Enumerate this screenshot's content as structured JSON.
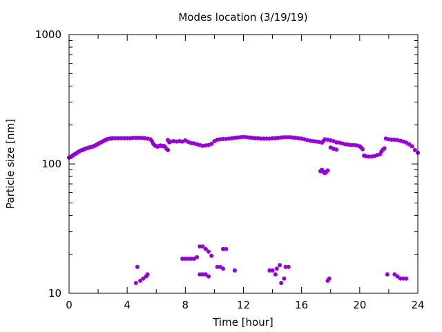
{
  "chart_data": {
    "type": "scatter",
    "title": "Modes location (3/19/19)",
    "xlabel": "Time [hour]",
    "ylabel": "Particle size [nm]",
    "xlim": [
      0,
      24
    ],
    "ylim": [
      10,
      1000
    ],
    "yscale": "log",
    "grid": false,
    "legend": "none",
    "marker_color": "#9400d3",
    "xticks": [
      0,
      4,
      8,
      12,
      16,
      20,
      24
    ],
    "xtick_labels": [
      "0",
      "4",
      "8",
      "12",
      "16",
      "20",
      "24"
    ],
    "yticks": [
      10,
      100,
      1000
    ],
    "ytick_labels": [
      "10",
      "100",
      "1000"
    ],
    "series": [
      {
        "values": [
          {
            "x": 0.0,
            "y": 112
          },
          {
            "x": 0.1,
            "y": 113
          },
          {
            "x": 0.2,
            "y": 115
          },
          {
            "x": 0.3,
            "y": 117
          },
          {
            "x": 0.4,
            "y": 119
          },
          {
            "x": 0.5,
            "y": 121
          },
          {
            "x": 0.6,
            "y": 123
          },
          {
            "x": 0.7,
            "y": 125
          },
          {
            "x": 0.8,
            "y": 127
          },
          {
            "x": 0.9,
            "y": 128
          },
          {
            "x": 1.0,
            "y": 129
          },
          {
            "x": 1.1,
            "y": 131
          },
          {
            "x": 1.2,
            "y": 132
          },
          {
            "x": 1.3,
            "y": 133
          },
          {
            "x": 1.4,
            "y": 134
          },
          {
            "x": 1.5,
            "y": 135
          },
          {
            "x": 1.6,
            "y": 136
          },
          {
            "x": 1.7,
            "y": 137
          },
          {
            "x": 1.8,
            "y": 139
          },
          {
            "x": 1.9,
            "y": 141
          },
          {
            "x": 2.0,
            "y": 143
          },
          {
            "x": 2.1,
            "y": 145
          },
          {
            "x": 2.2,
            "y": 147
          },
          {
            "x": 2.3,
            "y": 149
          },
          {
            "x": 2.4,
            "y": 151
          },
          {
            "x": 2.5,
            "y": 153
          },
          {
            "x": 2.6,
            "y": 155
          },
          {
            "x": 2.7,
            "y": 156
          },
          {
            "x": 2.8,
            "y": 157
          },
          {
            "x": 2.9,
            "y": 157
          },
          {
            "x": 3.0,
            "y": 158
          },
          {
            "x": 3.2,
            "y": 158
          },
          {
            "x": 3.4,
            "y": 158
          },
          {
            "x": 3.6,
            "y": 158
          },
          {
            "x": 3.8,
            "y": 158
          },
          {
            "x": 4.0,
            "y": 158
          },
          {
            "x": 4.2,
            "y": 158
          },
          {
            "x": 4.4,
            "y": 159
          },
          {
            "x": 4.6,
            "y": 159
          },
          {
            "x": 4.8,
            "y": 159
          },
          {
            "x": 5.0,
            "y": 159
          },
          {
            "x": 5.2,
            "y": 158
          },
          {
            "x": 5.4,
            "y": 157
          },
          {
            "x": 5.6,
            "y": 155
          },
          {
            "x": 5.7,
            "y": 150
          },
          {
            "x": 5.8,
            "y": 143
          },
          {
            "x": 5.9,
            "y": 139
          },
          {
            "x": 6.0,
            "y": 137
          },
          {
            "x": 6.1,
            "y": 136
          },
          {
            "x": 6.2,
            "y": 138
          },
          {
            "x": 6.3,
            "y": 139
          },
          {
            "x": 6.4,
            "y": 137
          },
          {
            "x": 6.5,
            "y": 138
          },
          {
            "x": 6.6,
            "y": 136
          },
          {
            "x": 6.7,
            "y": 131
          },
          {
            "x": 6.8,
            "y": 128
          },
          {
            "x": 6.8,
            "y": 153
          },
          {
            "x": 6.9,
            "y": 147
          },
          {
            "x": 7.0,
            "y": 149
          },
          {
            "x": 7.2,
            "y": 150
          },
          {
            "x": 7.4,
            "y": 149
          },
          {
            "x": 7.6,
            "y": 150
          },
          {
            "x": 7.8,
            "y": 149
          },
          {
            "x": 8.0,
            "y": 152
          },
          {
            "x": 8.2,
            "y": 148
          },
          {
            "x": 8.4,
            "y": 145
          },
          {
            "x": 8.6,
            "y": 144
          },
          {
            "x": 8.8,
            "y": 142
          },
          {
            "x": 9.0,
            "y": 140
          },
          {
            "x": 9.2,
            "y": 138
          },
          {
            "x": 9.4,
            "y": 139
          },
          {
            "x": 9.6,
            "y": 140
          },
          {
            "x": 9.8,
            "y": 143
          },
          {
            "x": 10.0,
            "y": 150
          },
          {
            "x": 10.2,
            "y": 154
          },
          {
            "x": 10.4,
            "y": 155
          },
          {
            "x": 10.6,
            "y": 156
          },
          {
            "x": 10.8,
            "y": 156
          },
          {
            "x": 11.0,
            "y": 157
          },
          {
            "x": 11.2,
            "y": 158
          },
          {
            "x": 11.4,
            "y": 159
          },
          {
            "x": 11.6,
            "y": 160
          },
          {
            "x": 11.8,
            "y": 161
          },
          {
            "x": 12.0,
            "y": 162
          },
          {
            "x": 12.2,
            "y": 161
          },
          {
            "x": 12.4,
            "y": 160
          },
          {
            "x": 12.6,
            "y": 159
          },
          {
            "x": 12.8,
            "y": 158
          },
          {
            "x": 13.0,
            "y": 158
          },
          {
            "x": 13.2,
            "y": 157
          },
          {
            "x": 13.4,
            "y": 157
          },
          {
            "x": 13.6,
            "y": 157
          },
          {
            "x": 13.8,
            "y": 157
          },
          {
            "x": 14.0,
            "y": 158
          },
          {
            "x": 14.2,
            "y": 158
          },
          {
            "x": 14.4,
            "y": 159
          },
          {
            "x": 14.6,
            "y": 160
          },
          {
            "x": 14.8,
            "y": 161
          },
          {
            "x": 15.0,
            "y": 161
          },
          {
            "x": 15.2,
            "y": 161
          },
          {
            "x": 15.4,
            "y": 160
          },
          {
            "x": 15.6,
            "y": 159
          },
          {
            "x": 15.8,
            "y": 158
          },
          {
            "x": 16.0,
            "y": 157
          },
          {
            "x": 16.2,
            "y": 155
          },
          {
            "x": 16.4,
            "y": 153
          },
          {
            "x": 16.6,
            "y": 151
          },
          {
            "x": 16.8,
            "y": 150
          },
          {
            "x": 17.0,
            "y": 149
          },
          {
            "x": 17.2,
            "y": 148
          },
          {
            "x": 17.4,
            "y": 146
          },
          {
            "x": 17.5,
            "y": 150
          },
          {
            "x": 17.6,
            "y": 155
          },
          {
            "x": 17.8,
            "y": 154
          },
          {
            "x": 18.0,
            "y": 152
          },
          {
            "x": 18.2,
            "y": 150
          },
          {
            "x": 18.4,
            "y": 147
          },
          {
            "x": 18.6,
            "y": 146
          },
          {
            "x": 18.8,
            "y": 144
          },
          {
            "x": 19.0,
            "y": 142
          },
          {
            "x": 19.2,
            "y": 141
          },
          {
            "x": 19.4,
            "y": 140
          },
          {
            "x": 19.6,
            "y": 140
          },
          {
            "x": 19.8,
            "y": 139
          },
          {
            "x": 20.0,
            "y": 137
          },
          {
            "x": 20.1,
            "y": 134
          },
          {
            "x": 20.2,
            "y": 130
          },
          {
            "x": 20.3,
            "y": 116
          },
          {
            "x": 20.4,
            "y": 115
          },
          {
            "x": 20.6,
            "y": 114
          },
          {
            "x": 20.8,
            "y": 114
          },
          {
            "x": 21.0,
            "y": 115
          },
          {
            "x": 21.2,
            "y": 117
          },
          {
            "x": 21.4,
            "y": 119
          },
          {
            "x": 21.5,
            "y": 125
          },
          {
            "x": 21.6,
            "y": 129
          },
          {
            "x": 21.7,
            "y": 132
          },
          {
            "x": 21.8,
            "y": 157
          },
          {
            "x": 22.0,
            "y": 155
          },
          {
            "x": 22.2,
            "y": 154
          },
          {
            "x": 22.4,
            "y": 154
          },
          {
            "x": 22.6,
            "y": 153
          },
          {
            "x": 22.8,
            "y": 151
          },
          {
            "x": 23.0,
            "y": 149
          },
          {
            "x": 23.2,
            "y": 146
          },
          {
            "x": 23.4,
            "y": 142
          },
          {
            "x": 23.6,
            "y": 137
          },
          {
            "x": 23.8,
            "y": 128
          },
          {
            "x": 24.0,
            "y": 122
          },
          {
            "x": 17.3,
            "y": 88
          },
          {
            "x": 17.4,
            "y": 90
          },
          {
            "x": 17.5,
            "y": 87
          },
          {
            "x": 17.6,
            "y": 85
          },
          {
            "x": 17.7,
            "y": 87
          },
          {
            "x": 17.8,
            "y": 89
          },
          {
            "x": 18.0,
            "y": 134
          },
          {
            "x": 18.2,
            "y": 131
          },
          {
            "x": 18.4,
            "y": 129
          },
          {
            "x": 4.6,
            "y": 12
          },
          {
            "x": 4.7,
            "y": 16
          },
          {
            "x": 4.9,
            "y": 12.5
          },
          {
            "x": 5.1,
            "y": 13
          },
          {
            "x": 5.3,
            "y": 13.5
          },
          {
            "x": 5.4,
            "y": 14
          },
          {
            "x": 7.8,
            "y": 18.5
          },
          {
            "x": 8.0,
            "y": 18.5
          },
          {
            "x": 8.2,
            "y": 18.5
          },
          {
            "x": 8.4,
            "y": 18.5
          },
          {
            "x": 8.6,
            "y": 18.5
          },
          {
            "x": 8.8,
            "y": 19
          },
          {
            "x": 9.0,
            "y": 23
          },
          {
            "x": 9.2,
            "y": 23
          },
          {
            "x": 9.4,
            "y": 22
          },
          {
            "x": 9.6,
            "y": 21
          },
          {
            "x": 9.8,
            "y": 19.5
          },
          {
            "x": 10.6,
            "y": 22
          },
          {
            "x": 10.8,
            "y": 22
          },
          {
            "x": 9.0,
            "y": 14
          },
          {
            "x": 9.2,
            "y": 14
          },
          {
            "x": 9.4,
            "y": 14
          },
          {
            "x": 9.6,
            "y": 13.5
          },
          {
            "x": 10.2,
            "y": 16
          },
          {
            "x": 10.4,
            "y": 16
          },
          {
            "x": 10.6,
            "y": 15.5
          },
          {
            "x": 11.4,
            "y": 15
          },
          {
            "x": 13.8,
            "y": 15
          },
          {
            "x": 14.0,
            "y": 15
          },
          {
            "x": 14.2,
            "y": 14
          },
          {
            "x": 14.3,
            "y": 15.5
          },
          {
            "x": 14.5,
            "y": 16.5
          },
          {
            "x": 14.6,
            "y": 12
          },
          {
            "x": 14.8,
            "y": 13
          },
          {
            "x": 14.9,
            "y": 16
          },
          {
            "x": 15.1,
            "y": 16
          },
          {
            "x": 17.8,
            "y": 12.5
          },
          {
            "x": 17.9,
            "y": 13
          },
          {
            "x": 21.9,
            "y": 14
          },
          {
            "x": 22.4,
            "y": 14
          },
          {
            "x": 22.6,
            "y": 13.5
          },
          {
            "x": 22.8,
            "y": 13
          },
          {
            "x": 23.0,
            "y": 13
          },
          {
            "x": 23.2,
            "y": 13
          }
        ]
      }
    ]
  }
}
